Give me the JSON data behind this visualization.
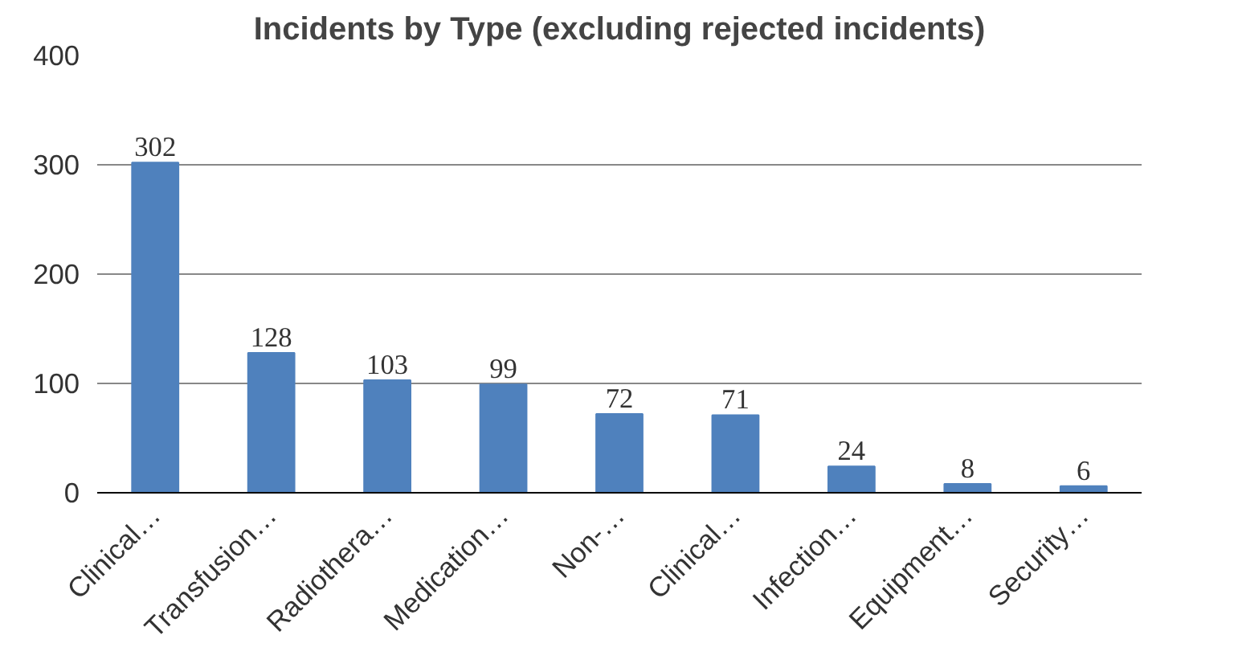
{
  "chart_data": {
    "type": "bar",
    "title": "Incidents by Type (excluding rejected incidents)",
    "categories": [
      "Clinical…",
      "Transfusion…",
      "Radiothera…",
      "Medication…",
      "Non-…",
      "Clinical…",
      "Infection…",
      "Equipment…",
      "Security…"
    ],
    "values": [
      302,
      128,
      103,
      99,
      72,
      71,
      24,
      8,
      6
    ],
    "color": "#4f81bd",
    "ylim": [
      0,
      400
    ],
    "yticks": [
      0,
      100,
      200,
      300,
      400
    ],
    "grid": "y",
    "data_labels": true
  }
}
